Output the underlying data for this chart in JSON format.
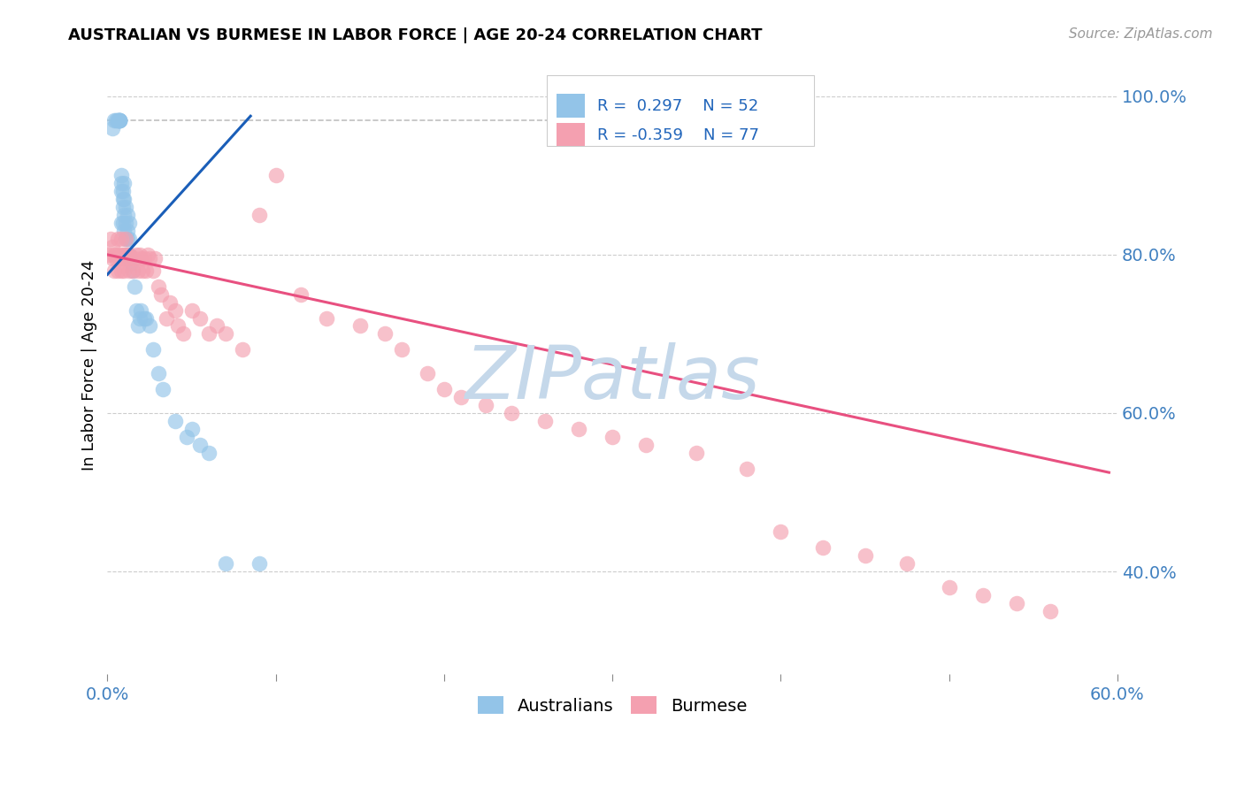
{
  "title": "AUSTRALIAN VS BURMESE IN LABOR FORCE | AGE 20-24 CORRELATION CHART",
  "source": "Source: ZipAtlas.com",
  "ylabel": "In Labor Force | Age 20-24",
  "xlim": [
    0.0,
    0.6
  ],
  "ylim": [
    0.27,
    1.05
  ],
  "r_australian": 0.297,
  "n_australian": 52,
  "r_burmese": -0.359,
  "n_burmese": 77,
  "australian_color": "#93c4e8",
  "burmese_color": "#f4a0b0",
  "trend_australian_color": "#1a5eb8",
  "trend_burmese_color": "#e85080",
  "watermark": "ZIPatlas",
  "watermark_color": "#c5d8ea",
  "australian_points_x": [
    0.003,
    0.004,
    0.005,
    0.006,
    0.006,
    0.007,
    0.007,
    0.007,
    0.007,
    0.007,
    0.008,
    0.008,
    0.008,
    0.008,
    0.009,
    0.009,
    0.009,
    0.009,
    0.01,
    0.01,
    0.01,
    0.01,
    0.011,
    0.011,
    0.011,
    0.012,
    0.012,
    0.012,
    0.012,
    0.013,
    0.013,
    0.013,
    0.014,
    0.015,
    0.016,
    0.017,
    0.018,
    0.019,
    0.02,
    0.022,
    0.023,
    0.025,
    0.027,
    0.03,
    0.033,
    0.04,
    0.047,
    0.05,
    0.055,
    0.06,
    0.07,
    0.09
  ],
  "australian_points_y": [
    0.96,
    0.97,
    0.97,
    0.97,
    0.97,
    0.97,
    0.97,
    0.97,
    0.97,
    0.97,
    0.84,
    0.88,
    0.89,
    0.9,
    0.84,
    0.86,
    0.87,
    0.88,
    0.83,
    0.85,
    0.87,
    0.89,
    0.82,
    0.84,
    0.86,
    0.8,
    0.82,
    0.83,
    0.85,
    0.8,
    0.82,
    0.84,
    0.79,
    0.78,
    0.76,
    0.73,
    0.71,
    0.72,
    0.73,
    0.72,
    0.72,
    0.71,
    0.68,
    0.65,
    0.63,
    0.59,
    0.57,
    0.58,
    0.56,
    0.55,
    0.41,
    0.41
  ],
  "burmese_points_x": [
    0.001,
    0.002,
    0.003,
    0.003,
    0.004,
    0.004,
    0.005,
    0.005,
    0.006,
    0.006,
    0.007,
    0.007,
    0.008,
    0.008,
    0.009,
    0.009,
    0.01,
    0.01,
    0.011,
    0.011,
    0.012,
    0.012,
    0.013,
    0.013,
    0.014,
    0.015,
    0.016,
    0.017,
    0.018,
    0.019,
    0.02,
    0.021,
    0.022,
    0.023,
    0.024,
    0.025,
    0.027,
    0.028,
    0.03,
    0.032,
    0.035,
    0.037,
    0.04,
    0.042,
    0.045,
    0.05,
    0.055,
    0.06,
    0.065,
    0.07,
    0.08,
    0.09,
    0.1,
    0.115,
    0.13,
    0.15,
    0.165,
    0.175,
    0.19,
    0.2,
    0.21,
    0.225,
    0.24,
    0.26,
    0.28,
    0.3,
    0.32,
    0.35,
    0.38,
    0.4,
    0.425,
    0.45,
    0.475,
    0.5,
    0.52,
    0.54,
    0.56
  ],
  "burmese_points_y": [
    0.8,
    0.82,
    0.795,
    0.81,
    0.78,
    0.8,
    0.795,
    0.8,
    0.82,
    0.78,
    0.795,
    0.8,
    0.82,
    0.78,
    0.8,
    0.795,
    0.8,
    0.78,
    0.8,
    0.82,
    0.795,
    0.8,
    0.78,
    0.8,
    0.795,
    0.78,
    0.795,
    0.8,
    0.78,
    0.8,
    0.795,
    0.78,
    0.795,
    0.78,
    0.8,
    0.795,
    0.78,
    0.795,
    0.76,
    0.75,
    0.72,
    0.74,
    0.73,
    0.71,
    0.7,
    0.73,
    0.72,
    0.7,
    0.71,
    0.7,
    0.68,
    0.85,
    0.9,
    0.75,
    0.72,
    0.71,
    0.7,
    0.68,
    0.65,
    0.63,
    0.62,
    0.61,
    0.6,
    0.59,
    0.58,
    0.57,
    0.56,
    0.55,
    0.53,
    0.45,
    0.43,
    0.42,
    0.41,
    0.38,
    0.37,
    0.36,
    0.35
  ],
  "australian_trend_x": [
    0.0,
    0.085
  ],
  "australian_trend_y": [
    0.775,
    0.975
  ],
  "burmese_trend_x": [
    0.0,
    0.595
  ],
  "burmese_trend_y": [
    0.8,
    0.525
  ],
  "dashed_line_x": [
    0.0,
    0.27
  ],
  "dashed_line_y": [
    0.97,
    0.97
  ]
}
